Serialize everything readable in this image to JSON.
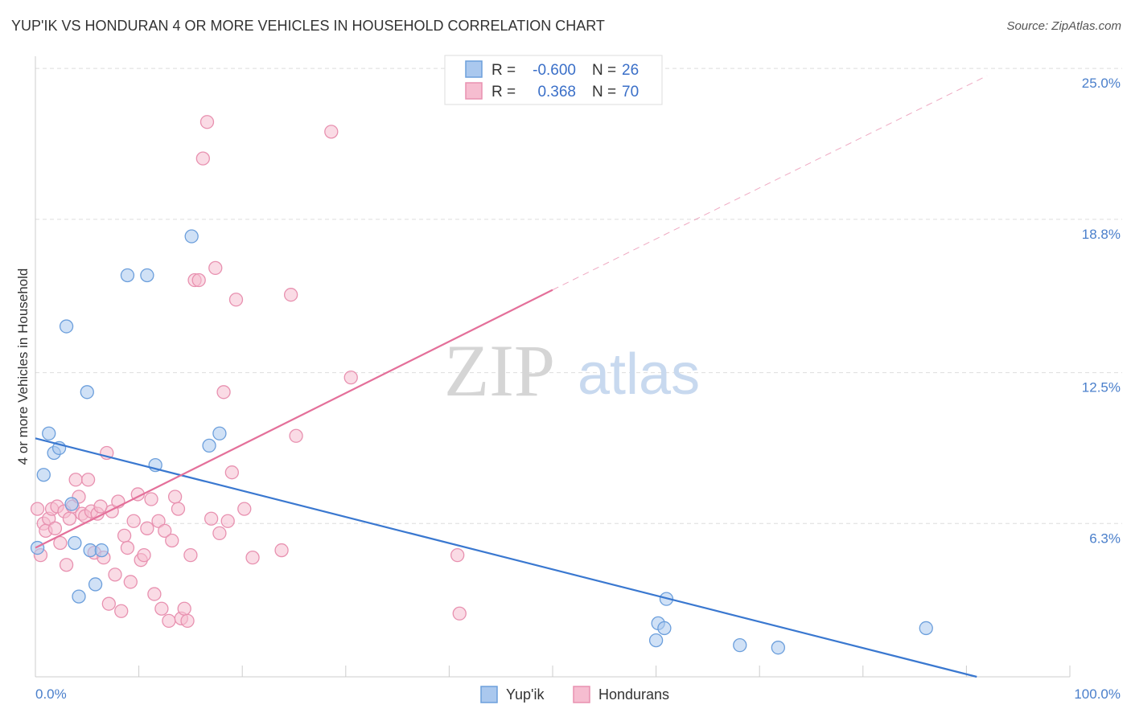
{
  "title": "YUP'IK VS HONDURAN 4 OR MORE VEHICLES IN HOUSEHOLD CORRELATION CHART",
  "source": "Source: ZipAtlas.com",
  "watermark": {
    "zip": "ZIP",
    "atlas": "atlas"
  },
  "colors": {
    "blue_fill": "#aac8ee",
    "blue_stroke": "#6c9fdc",
    "blue_line": "#3a78d0",
    "pink_fill": "#f6bdd0",
    "pink_stroke": "#e891b0",
    "pink_line": "#e4709a",
    "grid": "#dddddd",
    "tick_label": "#4a7fcb"
  },
  "legend": {
    "r_label": "R =",
    "n_label": "N =",
    "entries": [
      {
        "r": "-0.600",
        "n": "26"
      },
      {
        "r": "0.368",
        "n": "70"
      }
    ]
  },
  "chart_data": {
    "type": "scatter",
    "title": "YUP'IK VS HONDURAN 4 OR MORE VEHICLES IN HOUSEHOLD CORRELATION CHART",
    "xlabel": "",
    "ylabel": "4 or more Vehicles in Household",
    "xlim": [
      0,
      100
    ],
    "ylim": [
      0,
      25.5
    ],
    "x_tick_labels": [
      "0.0%",
      "100.0%"
    ],
    "y_ticks": [
      {
        "value": 6.3,
        "label": "6.3%"
      },
      {
        "value": 12.5,
        "label": "12.5%"
      },
      {
        "value": 18.8,
        "label": "18.8%"
      },
      {
        "value": 25.0,
        "label": "25.0%"
      }
    ],
    "grid": true,
    "legend_position": "top-center",
    "series": [
      {
        "name": "Yup'ik",
        "r": -0.6,
        "n": 26,
        "trend": {
          "x": [
            0,
            91
          ],
          "y": [
            9.8,
            0
          ]
        },
        "points": [
          [
            0.2,
            5.3
          ],
          [
            0.8,
            8.3
          ],
          [
            1.3,
            10.0
          ],
          [
            1.8,
            9.2
          ],
          [
            2.3,
            9.4
          ],
          [
            3.0,
            14.4
          ],
          [
            3.5,
            7.1
          ],
          [
            3.8,
            5.5
          ],
          [
            4.2,
            3.3
          ],
          [
            5.0,
            11.7
          ],
          [
            5.3,
            5.2
          ],
          [
            5.8,
            3.8
          ],
          [
            6.4,
            5.2
          ],
          [
            8.9,
            16.5
          ],
          [
            10.8,
            16.5
          ],
          [
            11.6,
            8.7
          ],
          [
            15.1,
            18.1
          ],
          [
            16.8,
            9.5
          ],
          [
            17.8,
            10.0
          ],
          [
            61.0,
            3.2
          ],
          [
            60.2,
            2.2
          ],
          [
            60.8,
            2.0
          ],
          [
            60.0,
            1.5
          ],
          [
            68.1,
            1.3
          ],
          [
            71.8,
            1.2
          ],
          [
            86.1,
            2.0
          ]
        ]
      },
      {
        "name": "Hondurans",
        "r": 0.368,
        "n": 70,
        "trend": {
          "x": [
            0,
            50
          ],
          "y": [
            5.3,
            15.9
          ]
        },
        "trend_extension": {
          "x": [
            50,
            92
          ],
          "y": [
            15.9,
            24.7
          ]
        },
        "points": [
          [
            0.2,
            6.9
          ],
          [
            0.5,
            5.0
          ],
          [
            0.8,
            6.3
          ],
          [
            1.0,
            6.0
          ],
          [
            1.3,
            6.5
          ],
          [
            1.6,
            6.9
          ],
          [
            1.9,
            6.1
          ],
          [
            2.1,
            7.0
          ],
          [
            2.4,
            5.5
          ],
          [
            2.8,
            6.8
          ],
          [
            3.0,
            4.6
          ],
          [
            3.3,
            6.5
          ],
          [
            3.6,
            7.0
          ],
          [
            3.9,
            8.1
          ],
          [
            4.2,
            7.4
          ],
          [
            4.5,
            6.7
          ],
          [
            4.8,
            6.6
          ],
          [
            5.1,
            8.1
          ],
          [
            5.4,
            6.8
          ],
          [
            5.7,
            5.1
          ],
          [
            6.0,
            6.7
          ],
          [
            6.3,
            7.0
          ],
          [
            6.6,
            4.9
          ],
          [
            6.9,
            9.2
          ],
          [
            7.1,
            3.0
          ],
          [
            7.4,
            6.8
          ],
          [
            7.7,
            4.2
          ],
          [
            8.0,
            7.2
          ],
          [
            8.3,
            2.7
          ],
          [
            8.6,
            5.8
          ],
          [
            8.9,
            5.3
          ],
          [
            9.2,
            3.9
          ],
          [
            9.5,
            6.4
          ],
          [
            9.9,
            7.5
          ],
          [
            10.2,
            4.8
          ],
          [
            10.5,
            5.0
          ],
          [
            10.8,
            6.1
          ],
          [
            11.2,
            7.3
          ],
          [
            11.5,
            3.4
          ],
          [
            11.9,
            6.4
          ],
          [
            12.2,
            2.8
          ],
          [
            12.5,
            6.0
          ],
          [
            12.9,
            2.3
          ],
          [
            13.2,
            5.6
          ],
          [
            13.5,
            7.4
          ],
          [
            13.8,
            6.9
          ],
          [
            14.1,
            2.4
          ],
          [
            14.4,
            2.8
          ],
          [
            14.7,
            2.3
          ],
          [
            15.0,
            5.0
          ],
          [
            15.4,
            16.3
          ],
          [
            15.8,
            16.3
          ],
          [
            16.2,
            21.3
          ],
          [
            16.6,
            22.8
          ],
          [
            17.0,
            6.5
          ],
          [
            17.4,
            16.8
          ],
          [
            17.8,
            5.9
          ],
          [
            18.2,
            11.7
          ],
          [
            18.6,
            6.4
          ],
          [
            19.0,
            8.4
          ],
          [
            19.4,
            15.5
          ],
          [
            20.2,
            6.9
          ],
          [
            21.0,
            4.9
          ],
          [
            23.8,
            5.2
          ],
          [
            24.7,
            15.7
          ],
          [
            25.2,
            9.9
          ],
          [
            28.6,
            22.4
          ],
          [
            30.5,
            12.3
          ],
          [
            40.8,
            5.0
          ],
          [
            41.0,
            2.6
          ]
        ]
      }
    ]
  }
}
